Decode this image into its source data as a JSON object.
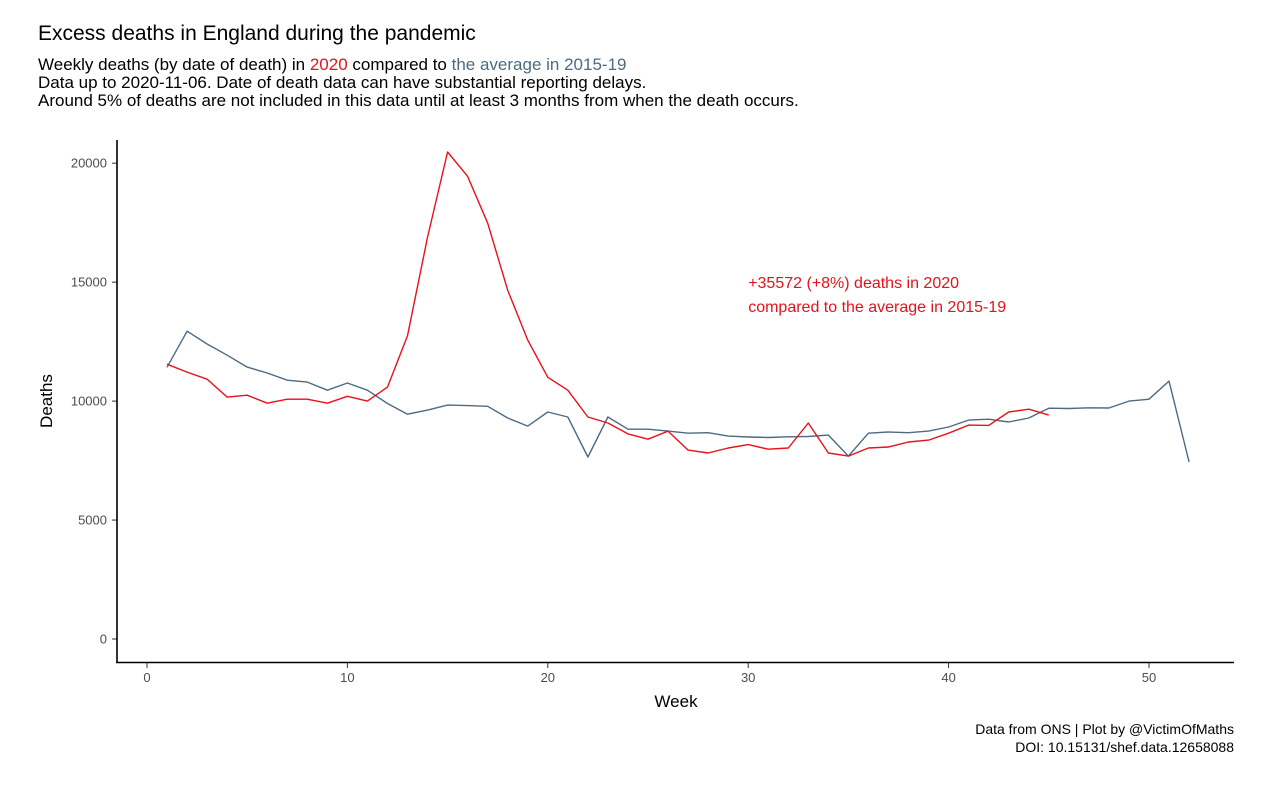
{
  "header": {
    "title": "Excess deaths in England during the pandemic",
    "subtitle_prefix": "Weekly deaths (by date of death) in ",
    "subtitle_2020": "2020",
    "subtitle_mid": " compared to ",
    "subtitle_avg": "the average in 2015-19",
    "subtitle_line2": "Data up to 2020-11-06. Date of death data can have substantial reporting delays.",
    "subtitle_line3": "Around 5% of deaths are not included in this data until at least 3 months from when the death occurs."
  },
  "caption": {
    "line1": "Data from ONS | Plot by @VictimOfMaths",
    "line2": "DOI: 10.15131/shef.data.12658088"
  },
  "colors": {
    "series_2020": "#e8111b",
    "series_avg": "#4e6b82"
  },
  "chart_data": {
    "type": "line",
    "title": "Excess deaths in England during the pandemic",
    "xlabel": "Week",
    "ylabel": "Deaths",
    "xlim": [
      -1.5,
      54.4
    ],
    "ylim": [
      -1000,
      21000
    ],
    "x_ticks": [
      0,
      10,
      20,
      30,
      40,
      50
    ],
    "x_tick_labels": [
      "0",
      "10",
      "20",
      "30",
      "40",
      "50"
    ],
    "y_ticks": [
      0,
      5000,
      10000,
      15000,
      20000
    ],
    "y_tick_labels": [
      "0",
      "5000",
      "10000",
      "15000",
      "20000"
    ],
    "grid": false,
    "legend": "none",
    "annotation": {
      "line1": "+35572 (+8%) deaths in 2020",
      "line2": "compared to the average in 2015-19",
      "x": 30,
      "y": 15000
    },
    "series": [
      {
        "name": "2020",
        "color": "#e8111b",
        "x": [
          1,
          2,
          3,
          4,
          5,
          6,
          7,
          8,
          9,
          10,
          11,
          12,
          13,
          14,
          15,
          16,
          17,
          18,
          19,
          20,
          21,
          22,
          23,
          24,
          25,
          26,
          27,
          28,
          29,
          30,
          31,
          32,
          33,
          34,
          35,
          36,
          37,
          38,
          39,
          40,
          41,
          42,
          43,
          44,
          45
        ],
        "values": [
          11550,
          11220,
          10920,
          10170,
          10250,
          9910,
          10080,
          10080,
          9910,
          10200,
          10000,
          10590,
          12750,
          16900,
          20470,
          19450,
          17480,
          14660,
          12560,
          11000,
          10460,
          9330,
          9080,
          8620,
          8400,
          8740,
          7940,
          7820,
          8030,
          8170,
          7980,
          8030,
          9080,
          7820,
          7690,
          8030,
          8070,
          8280,
          8360,
          8650,
          8990,
          8980,
          9540,
          9660,
          9410
        ]
      },
      {
        "name": "the average in 2015-19",
        "color": "#4e6b82",
        "x": [
          1,
          2,
          3,
          4,
          5,
          6,
          7,
          8,
          9,
          10,
          11,
          12,
          13,
          14,
          15,
          16,
          17,
          18,
          19,
          20,
          21,
          22,
          23,
          24,
          25,
          26,
          27,
          28,
          29,
          30,
          31,
          32,
          33,
          34,
          35,
          36,
          37,
          38,
          39,
          40,
          41,
          42,
          43,
          44,
          45,
          46,
          47,
          48,
          49,
          50,
          51,
          52
        ],
        "values": [
          11420,
          12940,
          12400,
          11930,
          11430,
          11180,
          10880,
          10800,
          10460,
          10760,
          10460,
          9900,
          9450,
          9620,
          9830,
          9810,
          9780,
          9290,
          8950,
          9540,
          9330,
          7650,
          9330,
          8820,
          8820,
          8740,
          8650,
          8670,
          8530,
          8490,
          8470,
          8500,
          8510,
          8570,
          7690,
          8650,
          8700,
          8670,
          8740,
          8910,
          9200,
          9240,
          9120,
          9290,
          9700,
          9690,
          9720,
          9710,
          10000,
          10080,
          10840,
          7440
        ]
      }
    ]
  }
}
